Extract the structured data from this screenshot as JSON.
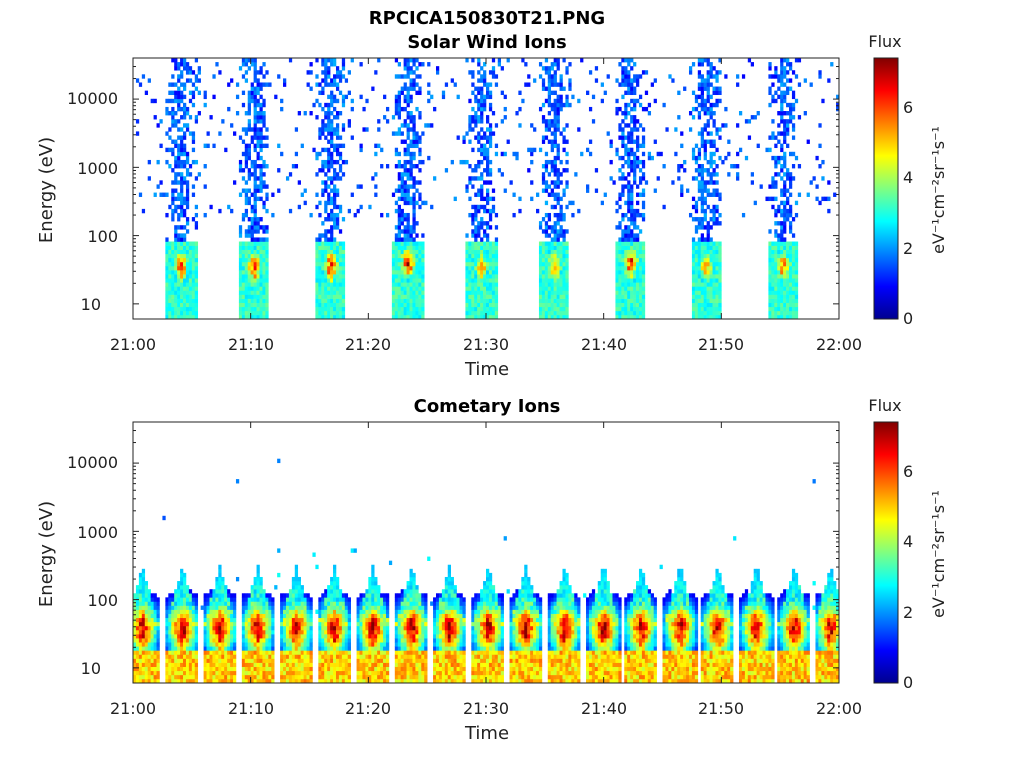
{
  "figure": {
    "title": "RPCICA150830T21.PNG"
  },
  "colormap": [
    "#00008f",
    "#0000ff",
    "#0080ff",
    "#00ffff",
    "#80ff80",
    "#ffff00",
    "#ff8000",
    "#ff0000",
    "#800000"
  ],
  "chart_data": [
    {
      "type": "heatmap",
      "title": "Solar Wind Ions",
      "xlabel": "Time",
      "ylabel": "Energy (eV)",
      "x_ticks": [
        "21:00",
        "21:10",
        "21:20",
        "21:30",
        "21:40",
        "21:50",
        "22:00"
      ],
      "x_range": [
        "21:00",
        "22:00"
      ],
      "y_scale": "log",
      "y_ticks": [
        10,
        100,
        1000,
        10000
      ],
      "y_tick_labels": [
        "10",
        "100",
        "1000",
        "10000"
      ],
      "y_range": [
        6,
        40000
      ],
      "colorbar": {
        "title": "Flux",
        "label": "eV⁻¹cm⁻²sr⁻¹s⁻¹",
        "range": [
          0,
          7.4
        ],
        "ticks": [
          0,
          2,
          4,
          6
        ],
        "tick_labels": [
          "0",
          "2",
          "4",
          "6"
        ]
      },
      "bursts": [
        {
          "center_min": 4.1,
          "peak_energy_ev": 35,
          "peak_flux": 6.0
        },
        {
          "center_min": 10.3,
          "peak_energy_ev": 35,
          "peak_flux": 6.3
        },
        {
          "center_min": 16.8,
          "peak_energy_ev": 35,
          "peak_flux": 6.5
        },
        {
          "center_min": 23.4,
          "peak_energy_ev": 40,
          "peak_flux": 6.6
        },
        {
          "center_min": 29.6,
          "peak_energy_ev": 35,
          "peak_flux": 5.6
        },
        {
          "center_min": 35.8,
          "peak_energy_ev": 35,
          "peak_flux": 5.8
        },
        {
          "center_min": 42.3,
          "peak_energy_ev": 40,
          "peak_flux": 6.4
        },
        {
          "center_min": 48.7,
          "peak_energy_ev": 35,
          "peak_flux": 5.6
        },
        {
          "center_min": 55.3,
          "peak_energy_ev": 35,
          "peak_flux": 5.9
        }
      ]
    },
    {
      "type": "heatmap",
      "title": "Cometary Ions",
      "xlabel": "Time",
      "ylabel": "Energy (eV)",
      "x_ticks": [
        "21:00",
        "21:10",
        "21:20",
        "21:30",
        "21:40",
        "21:50",
        "22:00"
      ],
      "x_range": [
        "21:00",
        "22:00"
      ],
      "y_scale": "log",
      "y_ticks": [
        10,
        100,
        1000,
        10000
      ],
      "y_tick_labels": [
        "10",
        "100",
        "1000",
        "10000"
      ],
      "y_range": [
        6,
        40000
      ],
      "colorbar": {
        "title": "Flux",
        "label": "eV⁻¹cm⁻²sr⁻¹s⁻¹",
        "range": [
          0,
          7.4
        ],
        "ticks": [
          0,
          2,
          4,
          6
        ],
        "tick_labels": [
          "0",
          "2",
          "4",
          "6"
        ]
      },
      "bursts": [
        {
          "center_min": 0.8,
          "peak_energy_ev": 40,
          "peak_flux": 7.0
        },
        {
          "center_min": 4.2,
          "peak_energy_ev": 40,
          "peak_flux": 7.2
        },
        {
          "center_min": 7.4,
          "peak_energy_ev": 40,
          "peak_flux": 7.2
        },
        {
          "center_min": 10.6,
          "peak_energy_ev": 40,
          "peak_flux": 7.1
        },
        {
          "center_min": 13.9,
          "peak_energy_ev": 40,
          "peak_flux": 7.1
        },
        {
          "center_min": 17.1,
          "peak_energy_ev": 40,
          "peak_flux": 7.2
        },
        {
          "center_min": 20.4,
          "peak_energy_ev": 40,
          "peak_flux": 7.2
        },
        {
          "center_min": 23.7,
          "peak_energy_ev": 40,
          "peak_flux": 7.3
        },
        {
          "center_min": 26.9,
          "peak_energy_ev": 40,
          "peak_flux": 7.1
        },
        {
          "center_min": 30.2,
          "peak_energy_ev": 40,
          "peak_flux": 7.2
        },
        {
          "center_min": 33.4,
          "peak_energy_ev": 40,
          "peak_flux": 7.2
        },
        {
          "center_min": 36.7,
          "peak_energy_ev": 40,
          "peak_flux": 7.3
        },
        {
          "center_min": 40.0,
          "peak_energy_ev": 40,
          "peak_flux": 7.2
        },
        {
          "center_min": 43.2,
          "peak_energy_ev": 40,
          "peak_flux": 7.1
        },
        {
          "center_min": 46.5,
          "peak_energy_ev": 40,
          "peak_flux": 7.1
        },
        {
          "center_min": 49.7,
          "peak_energy_ev": 40,
          "peak_flux": 7.2
        },
        {
          "center_min": 53.0,
          "peak_energy_ev": 40,
          "peak_flux": 7.3
        },
        {
          "center_min": 56.2,
          "peak_energy_ev": 40,
          "peak_flux": 7.2
        },
        {
          "center_min": 59.3,
          "peak_energy_ev": 40,
          "peak_flux": 7.1
        }
      ]
    }
  ]
}
